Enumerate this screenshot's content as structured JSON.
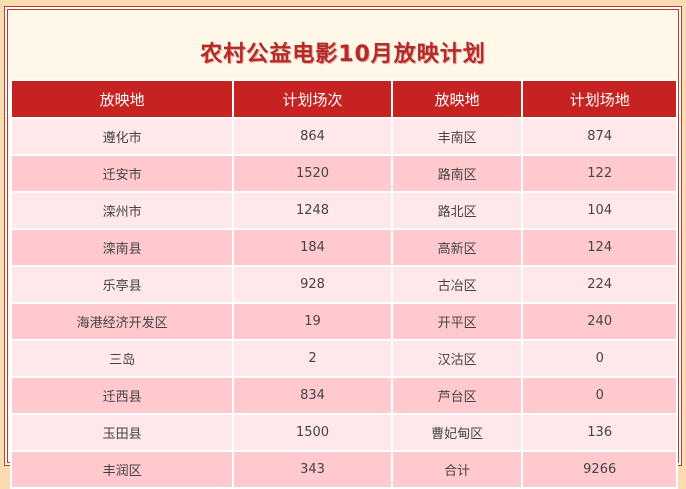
{
  "title": "农村公益电影10月放映计划",
  "headers": [
    "放映地",
    "计划场次",
    "放映地",
    "计划场地"
  ],
  "rows": [
    [
      "遵化市",
      "864",
      "丰南区",
      "874"
    ],
    [
      "迁安市",
      "1520",
      "路南区",
      "122"
    ],
    [
      "滦州市",
      "1248",
      "路北区",
      "104"
    ],
    [
      "滦南县",
      "184",
      "高新区",
      "124"
    ],
    [
      "乐亭县",
      "928",
      "古冶区",
      "224"
    ],
    [
      "海港经济开发区",
      "19",
      "开平区",
      "240"
    ],
    [
      "三岛",
      "2",
      "汉沽区",
      "0"
    ],
    [
      "迁西县",
      "834",
      "芦台区",
      "0"
    ],
    [
      "玉田县",
      "1500",
      "曹妃甸区",
      "136"
    ],
    [
      "丰润区",
      "343",
      "合计",
      "9266"
    ]
  ],
  "colors": {
    "header": "#c62222",
    "row_light": "#ffe8ea",
    "row_dark": "#ffc9ce",
    "title": "#b22b27"
  }
}
